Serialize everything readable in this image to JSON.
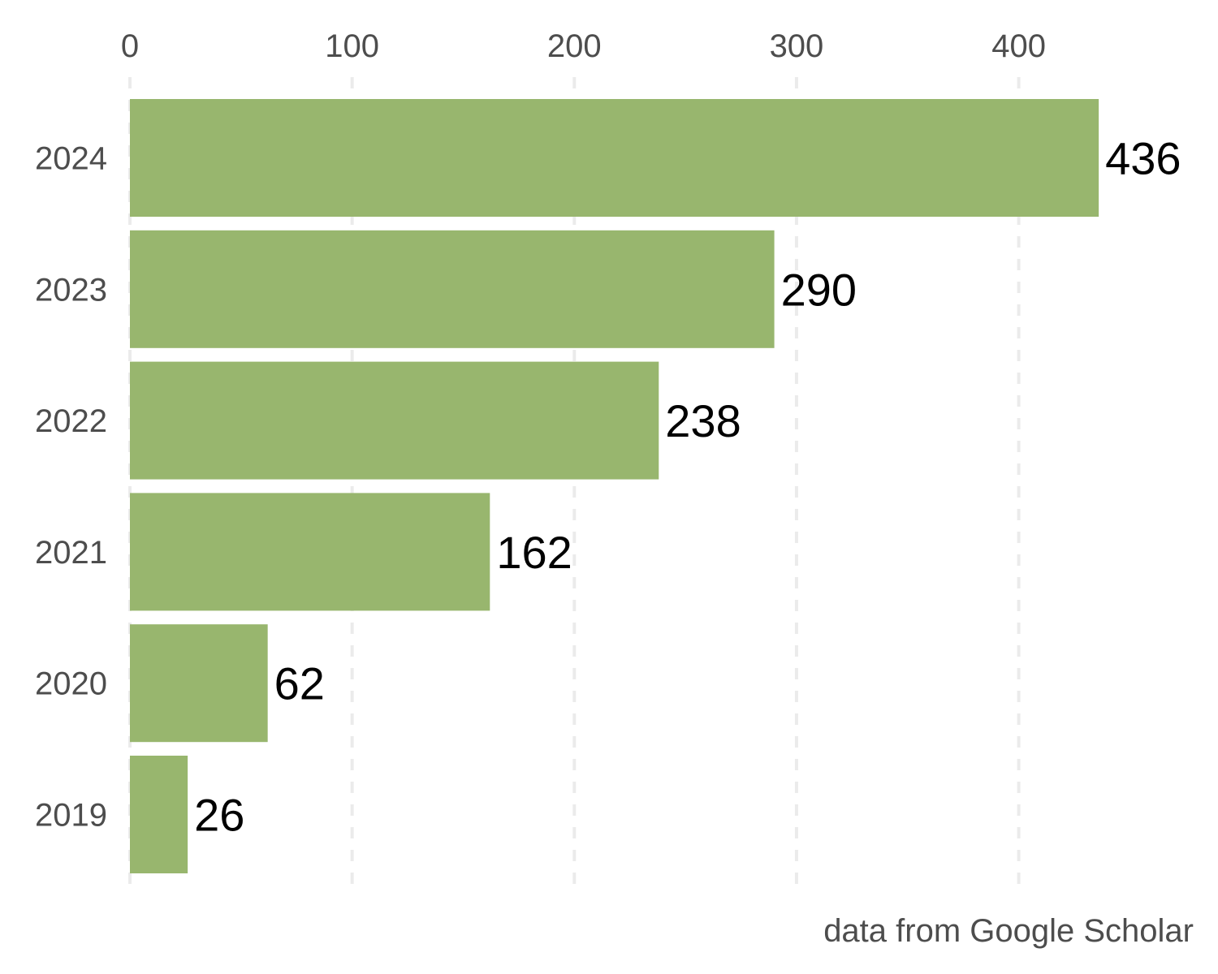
{
  "chart_data": {
    "type": "bar",
    "orientation": "horizontal",
    "categories": [
      "2024",
      "2023",
      "2022",
      "2021",
      "2020",
      "2019"
    ],
    "values": [
      436,
      290,
      238,
      162,
      62,
      26
    ],
    "data_labels": [
      "436",
      "290",
      "238",
      "162",
      "62",
      "26"
    ],
    "title": "",
    "xlabel": "",
    "ylabel": "",
    "xlim": [
      0,
      436
    ],
    "x_ticks": [
      0,
      100,
      200,
      300,
      400
    ],
    "x_tick_labels": [
      "0",
      "100",
      "200",
      "300",
      "400"
    ],
    "x_axis_position": "top",
    "grid": "vertical-dashed",
    "legend": "none",
    "caption": "data from Google Scholar",
    "colors": {
      "bar": "#98b66e",
      "grid": "#ebebeb",
      "tick_text": "#4d4d4d",
      "value_text": "#000000"
    }
  }
}
